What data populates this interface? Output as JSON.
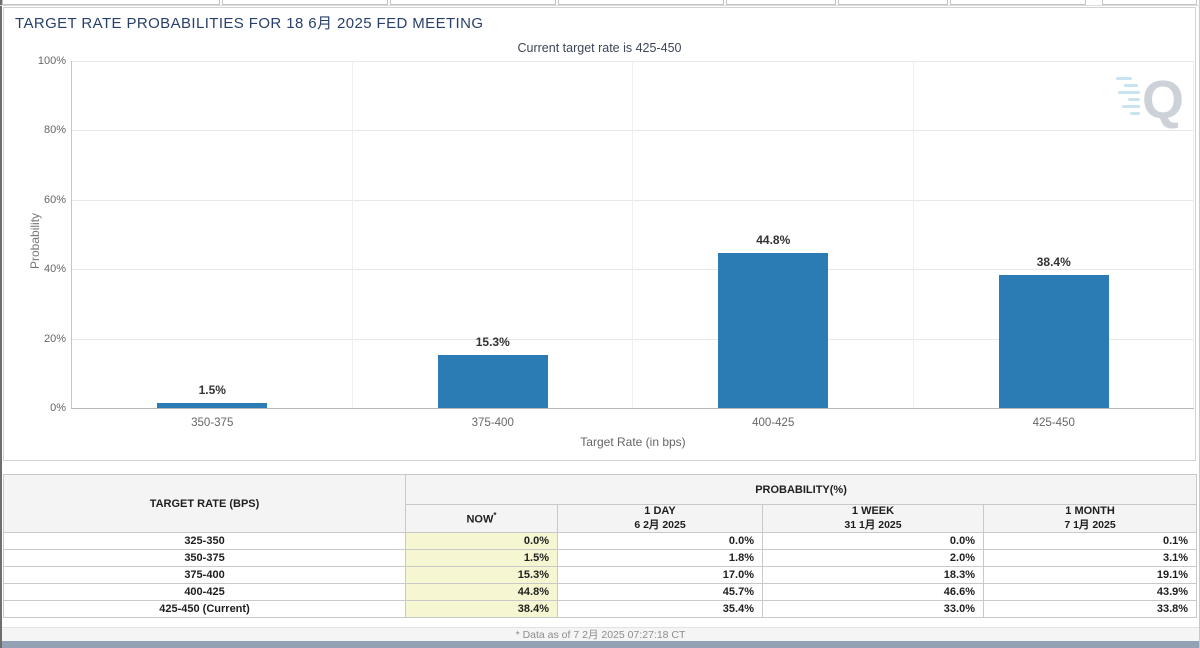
{
  "header": {
    "title": "TARGET RATE PROBABILITIES FOR 18 6月 2025 FED MEETING",
    "menu_icon": "hamburger-icon"
  },
  "chart_data": {
    "type": "bar",
    "title": "",
    "subtitle": "Current target rate is 425-450",
    "categories": [
      "350-375",
      "375-400",
      "400-425",
      "425-450"
    ],
    "values": [
      1.5,
      15.3,
      44.8,
      38.4
    ],
    "value_labels": [
      "1.5%",
      "15.3%",
      "44.8%",
      "38.4%"
    ],
    "xlabel": "Target Rate (in bps)",
    "ylabel": "Probability",
    "ylim": [
      0,
      100
    ],
    "yticks": [
      "0%",
      "20%",
      "40%",
      "60%",
      "80%",
      "100%"
    ],
    "legend_position": "none",
    "grid": true,
    "bar_color": "#2b7cb5",
    "watermark_letter": "Q"
  },
  "table": {
    "group_header": "PROBABILITY(%)",
    "columns": [
      {
        "label": "TARGET RATE (BPS)"
      },
      {
        "label": "NOW",
        "sup": "*"
      },
      {
        "label": "1 DAY",
        "sub": "6 2月 2025"
      },
      {
        "label": "1 WEEK",
        "sub": "31 1月 2025"
      },
      {
        "label": "1 MONTH",
        "sub": "7 1月 2025"
      }
    ],
    "rows": [
      {
        "rate": "325-350",
        "now": "0.0%",
        "day": "0.0%",
        "week": "0.0%",
        "month": "0.1%"
      },
      {
        "rate": "350-375",
        "now": "1.5%",
        "day": "1.8%",
        "week": "2.0%",
        "month": "3.1%"
      },
      {
        "rate": "375-400",
        "now": "15.3%",
        "day": "17.0%",
        "week": "18.3%",
        "month": "19.1%"
      },
      {
        "rate": "400-425",
        "now": "44.8%",
        "day": "45.7%",
        "week": "46.6%",
        "month": "43.9%"
      },
      {
        "rate": "425-450 (Current)",
        "now": "38.4%",
        "day": "35.4%",
        "week": "33.0%",
        "month": "33.8%"
      }
    ],
    "footnote": "* Data as of 7 2月 2025 07:27:18 CT"
  },
  "colors": {
    "bar": "#2b7cb5",
    "now_column_bg": "#f6f6d2",
    "header_bg": "#f4f4f4",
    "title_text": "#29406a",
    "bottom_strip": "#93a1b4",
    "grid_line": "#e8e8e8"
  }
}
